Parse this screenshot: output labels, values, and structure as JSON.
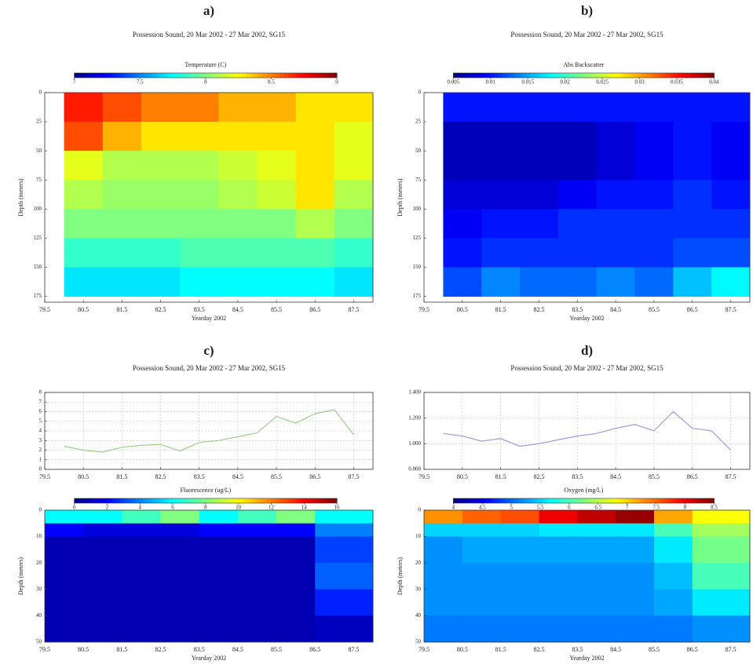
{
  "chart_data": [
    {
      "type": "heatmap",
      "title": "a)",
      "subtitle": "Possession Sound,  20 Mar 2002 - 27 Mar 2002,  SG15",
      "colorbar_label": "Temperature (C)",
      "clim": [
        7,
        9
      ],
      "cticks": [
        7,
        7.5,
        8,
        8.5,
        9
      ],
      "xlabel": "Yearday 2002",
      "ylabel": "Depth (meters)",
      "invert_y": true,
      "xlim": [
        79.5,
        88
      ],
      "xticks": [
        79.5,
        80.5,
        81.5,
        82.5,
        83.5,
        84.5,
        85.5,
        86.5,
        87.5
      ],
      "ylim": [
        0,
        180
      ],
      "yticks": [
        0,
        25,
        50,
        75,
        100,
        125,
        150,
        175
      ],
      "x_bins": [
        80,
        81,
        82,
        83,
        84,
        85,
        86,
        87,
        88
      ],
      "y_bins": [
        0,
        25,
        50,
        75,
        100,
        125,
        150,
        175
      ],
      "z": [
        [
          8.7,
          8.6,
          8.5,
          8.5,
          8.4,
          8.4,
          8.3,
          8.3
        ],
        [
          8.6,
          8.4,
          8.3,
          8.3,
          8.3,
          8.3,
          8.3,
          8.2
        ],
        [
          8.2,
          8.1,
          8.1,
          8.1,
          8.15,
          8.2,
          8.3,
          8.2
        ],
        [
          8.1,
          8.05,
          8.05,
          8.05,
          8.1,
          8.15,
          8.3,
          8.1
        ],
        [
          8.0,
          8.0,
          8.0,
          8.0,
          8.0,
          8.0,
          8.1,
          8.0
        ],
        [
          7.85,
          7.85,
          7.85,
          7.9,
          7.9,
          7.9,
          7.9,
          7.85
        ],
        [
          7.7,
          7.7,
          7.7,
          7.75,
          7.75,
          7.75,
          7.75,
          7.7
        ]
      ]
    },
    {
      "type": "heatmap",
      "title": "b)",
      "subtitle": "Possession Sound,  20 Mar 2002 - 27 Mar 2002,  SG15",
      "colorbar_label": "Abs Backscatter",
      "clim": [
        0.005,
        0.04
      ],
      "cticks": [
        0.005,
        0.01,
        0.015,
        0.02,
        0.025,
        0.03,
        0.035,
        0.04
      ],
      "xlabel": "Yearday 2002",
      "ylabel": "Depth (meters)",
      "invert_y": true,
      "xlim": [
        79.5,
        88
      ],
      "xticks": [
        79.5,
        80.5,
        81.5,
        82.5,
        83.5,
        84.5,
        85.5,
        86.5,
        87.5
      ],
      "ylim": [
        0,
        180
      ],
      "yticks": [
        0,
        25,
        50,
        75,
        100,
        125,
        150,
        175
      ],
      "x_bins": [
        80,
        81,
        82,
        83,
        84,
        85,
        86,
        87,
        88
      ],
      "y_bins": [
        0,
        25,
        50,
        75,
        100,
        125,
        150,
        175
      ],
      "z": [
        [
          0.01,
          0.01,
          0.01,
          0.01,
          0.01,
          0.01,
          0.01,
          0.01
        ],
        [
          0.007,
          0.007,
          0.007,
          0.007,
          0.008,
          0.009,
          0.01,
          0.009
        ],
        [
          0.007,
          0.007,
          0.007,
          0.007,
          0.008,
          0.009,
          0.01,
          0.009
        ],
        [
          0.008,
          0.008,
          0.008,
          0.009,
          0.01,
          0.01,
          0.011,
          0.01
        ],
        [
          0.009,
          0.01,
          0.01,
          0.011,
          0.011,
          0.011,
          0.011,
          0.011
        ],
        [
          0.01,
          0.011,
          0.011,
          0.011,
          0.011,
          0.011,
          0.012,
          0.012
        ],
        [
          0.012,
          0.014,
          0.013,
          0.013,
          0.014,
          0.013,
          0.016,
          0.018
        ]
      ]
    },
    {
      "type": "line",
      "title": "c)",
      "subtitle": "Possession Sound,  20 Mar 2002 - 27 Mar 2002,  SG15",
      "grid": true,
      "color": "#9ccf8c",
      "xlim": [
        79.5,
        88
      ],
      "xticks": [
        79.5,
        80.5,
        81.5,
        82.5,
        83.5,
        84.5,
        85.5,
        86.5,
        87.5
      ],
      "ylim": [
        0,
        8
      ],
      "yticks": [
        0,
        1,
        2,
        3,
        4,
        5,
        6,
        7,
        8
      ],
      "x": [
        80,
        80.5,
        81,
        81.5,
        82,
        82.5,
        83,
        83.5,
        84,
        84.5,
        85,
        85.5,
        86,
        86.5,
        87,
        87.5
      ],
      "values": [
        2.4,
        2.0,
        1.8,
        2.3,
        2.5,
        2.6,
        1.9,
        2.8,
        3.0,
        3.4,
        3.8,
        5.5,
        4.8,
        5.8,
        6.2,
        3.6
      ]
    },
    {
      "type": "heatmap",
      "colorbar_label": "Fluorescence (ug/L)",
      "clim": [
        0,
        16
      ],
      "cticks": [
        0,
        2,
        4,
        6,
        8,
        10,
        12,
        14,
        16
      ],
      "xlabel": "Yearday 2002",
      "ylabel": "Depth (meters)",
      "invert_y": true,
      "xlim": [
        79.5,
        88
      ],
      "xticks": [
        79.5,
        80.5,
        81.5,
        82.5,
        83.5,
        84.5,
        85.5,
        86.5,
        87.5
      ],
      "ylim": [
        0,
        50
      ],
      "yticks": [
        0,
        10,
        20,
        30,
        40,
        50
      ],
      "x_bins": [
        79.5,
        80.5,
        81.5,
        82.5,
        83.5,
        84.5,
        85.5,
        86.5,
        88
      ],
      "y_bins": [
        0,
        5,
        10,
        20,
        30,
        40,
        50
      ],
      "z": [
        [
          6,
          6,
          7,
          8,
          6,
          7,
          8,
          6
        ],
        [
          2,
          1.5,
          1.5,
          1.5,
          2,
          2,
          2,
          4
        ],
        [
          0.8,
          0.8,
          0.8,
          0.8,
          0.8,
          0.8,
          0.8,
          3
        ],
        [
          0.8,
          0.8,
          0.8,
          0.8,
          0.8,
          0.8,
          0.8,
          3.5
        ],
        [
          0.8,
          0.8,
          0.8,
          0.8,
          0.8,
          0.8,
          0.8,
          2.5
        ],
        [
          0.8,
          0.8,
          0.8,
          0.8,
          0.8,
          0.8,
          0.8,
          1
        ]
      ]
    },
    {
      "type": "line",
      "title": "d)",
      "subtitle": "Possession Sound,  20 Mar 2002 - 27 Mar 2002,  SG15",
      "grid": true,
      "color": "#9c9cdc",
      "xlim": [
        79.5,
        88
      ],
      "xticks": [
        79.5,
        80.5,
        81.5,
        82.5,
        83.5,
        84.5,
        85.5,
        86.5,
        87.5
      ],
      "ylim": [
        0.8,
        1.4
      ],
      "yticks": [
        {
          "value": 0.8,
          "label": "0.800"
        },
        {
          "value": 1.0,
          "label": "1.000"
        },
        {
          "value": 1.2,
          "label": "1.200"
        },
        {
          "value": 1.4,
          "label": "1.400"
        }
      ],
      "x": [
        80,
        80.5,
        81,
        81.5,
        82,
        82.5,
        83,
        83.5,
        84,
        84.5,
        85,
        85.5,
        86,
        86.5,
        87,
        87.5
      ],
      "values": [
        1.08,
        1.06,
        1.02,
        1.04,
        0.98,
        1.0,
        1.03,
        1.06,
        1.08,
        1.12,
        1.15,
        1.1,
        1.25,
        1.12,
        1.1,
        0.95
      ]
    },
    {
      "type": "heatmap",
      "colorbar_label": "Oxygen (mg/L)",
      "clim": [
        4,
        8.5
      ],
      "cticks": [
        4,
        4.5,
        5,
        5.5,
        6,
        6.5,
        7,
        7.5,
        8,
        8.5
      ],
      "xlabel": "Yearday 2002",
      "ylabel": "Depth (meters)",
      "invert_y": true,
      "xlim": [
        79.5,
        88
      ],
      "xticks": [
        79.5,
        80.5,
        81.5,
        82.5,
        83.5,
        84.5,
        85.5,
        86.5,
        87.5
      ],
      "ylim": [
        0,
        50
      ],
      "yticks": [
        0,
        10,
        20,
        30,
        40,
        50
      ],
      "x_bins": [
        79.5,
        80.5,
        81.5,
        82.5,
        83.5,
        84.5,
        85.5,
        86.5,
        88
      ],
      "y_bins": [
        0,
        5,
        10,
        20,
        30,
        40,
        50
      ],
      "z": [
        [
          7.3,
          7.5,
          7.6,
          8,
          8.2,
          8.4,
          7.2,
          6.8
        ],
        [
          5.5,
          5.5,
          5.5,
          5.6,
          5.6,
          5.6,
          6,
          6.4
        ],
        [
          5.2,
          5.3,
          5.3,
          5.3,
          5.3,
          5.3,
          5.6,
          6.2
        ],
        [
          5.2,
          5.2,
          5.2,
          5.2,
          5.2,
          5.2,
          5.4,
          6
        ],
        [
          5.2,
          5.2,
          5.2,
          5.2,
          5.2,
          5.2,
          5.3,
          5.6
        ],
        [
          5.1,
          5.1,
          5.1,
          5.1,
          5.1,
          5.1,
          5.1,
          5.2
        ]
      ]
    }
  ]
}
